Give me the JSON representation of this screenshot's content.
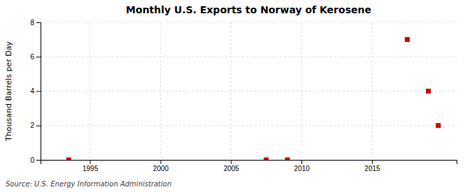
{
  "chart_data": {
    "type": "scatter",
    "title": "Monthly U.S. Exports to Norway of Kerosene",
    "ylabel": "Thousand Barrels per Day",
    "source": "Source: U.S. Energy Information Administration",
    "x": [
      1993.5,
      2007.5,
      2009.0,
      2017.5,
      2019.0,
      2019.7
    ],
    "values": [
      0.0,
      0.0,
      0.0,
      7.0,
      4.0,
      2.0
    ],
    "color": "#cc0000",
    "marker": "square",
    "xlim": [
      1991.5,
      2021.0
    ],
    "xticks": [
      1995,
      2000,
      2005,
      2010,
      2015
    ],
    "ylim": [
      0,
      8
    ],
    "yticks": [
      0,
      2,
      4,
      6,
      8
    ],
    "grid": true
  }
}
